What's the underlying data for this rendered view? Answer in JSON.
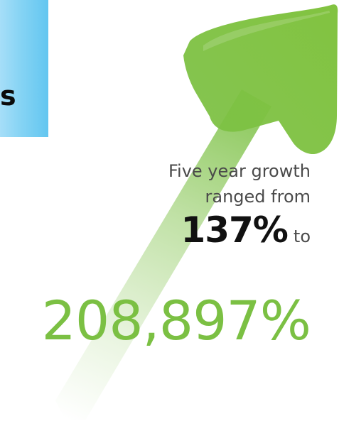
{
  "panel": {
    "visible_text": "s"
  },
  "growth": {
    "line1": "Five year growth",
    "line2": "ranged from",
    "low_value": "137%",
    "to_word": "to",
    "high_value": "208,897%"
  },
  "colors": {
    "arrow_green": "#7bc043",
    "text_gray": "#4a4a4a",
    "text_dark": "#111111",
    "panel_blue": "#63c6f0"
  }
}
